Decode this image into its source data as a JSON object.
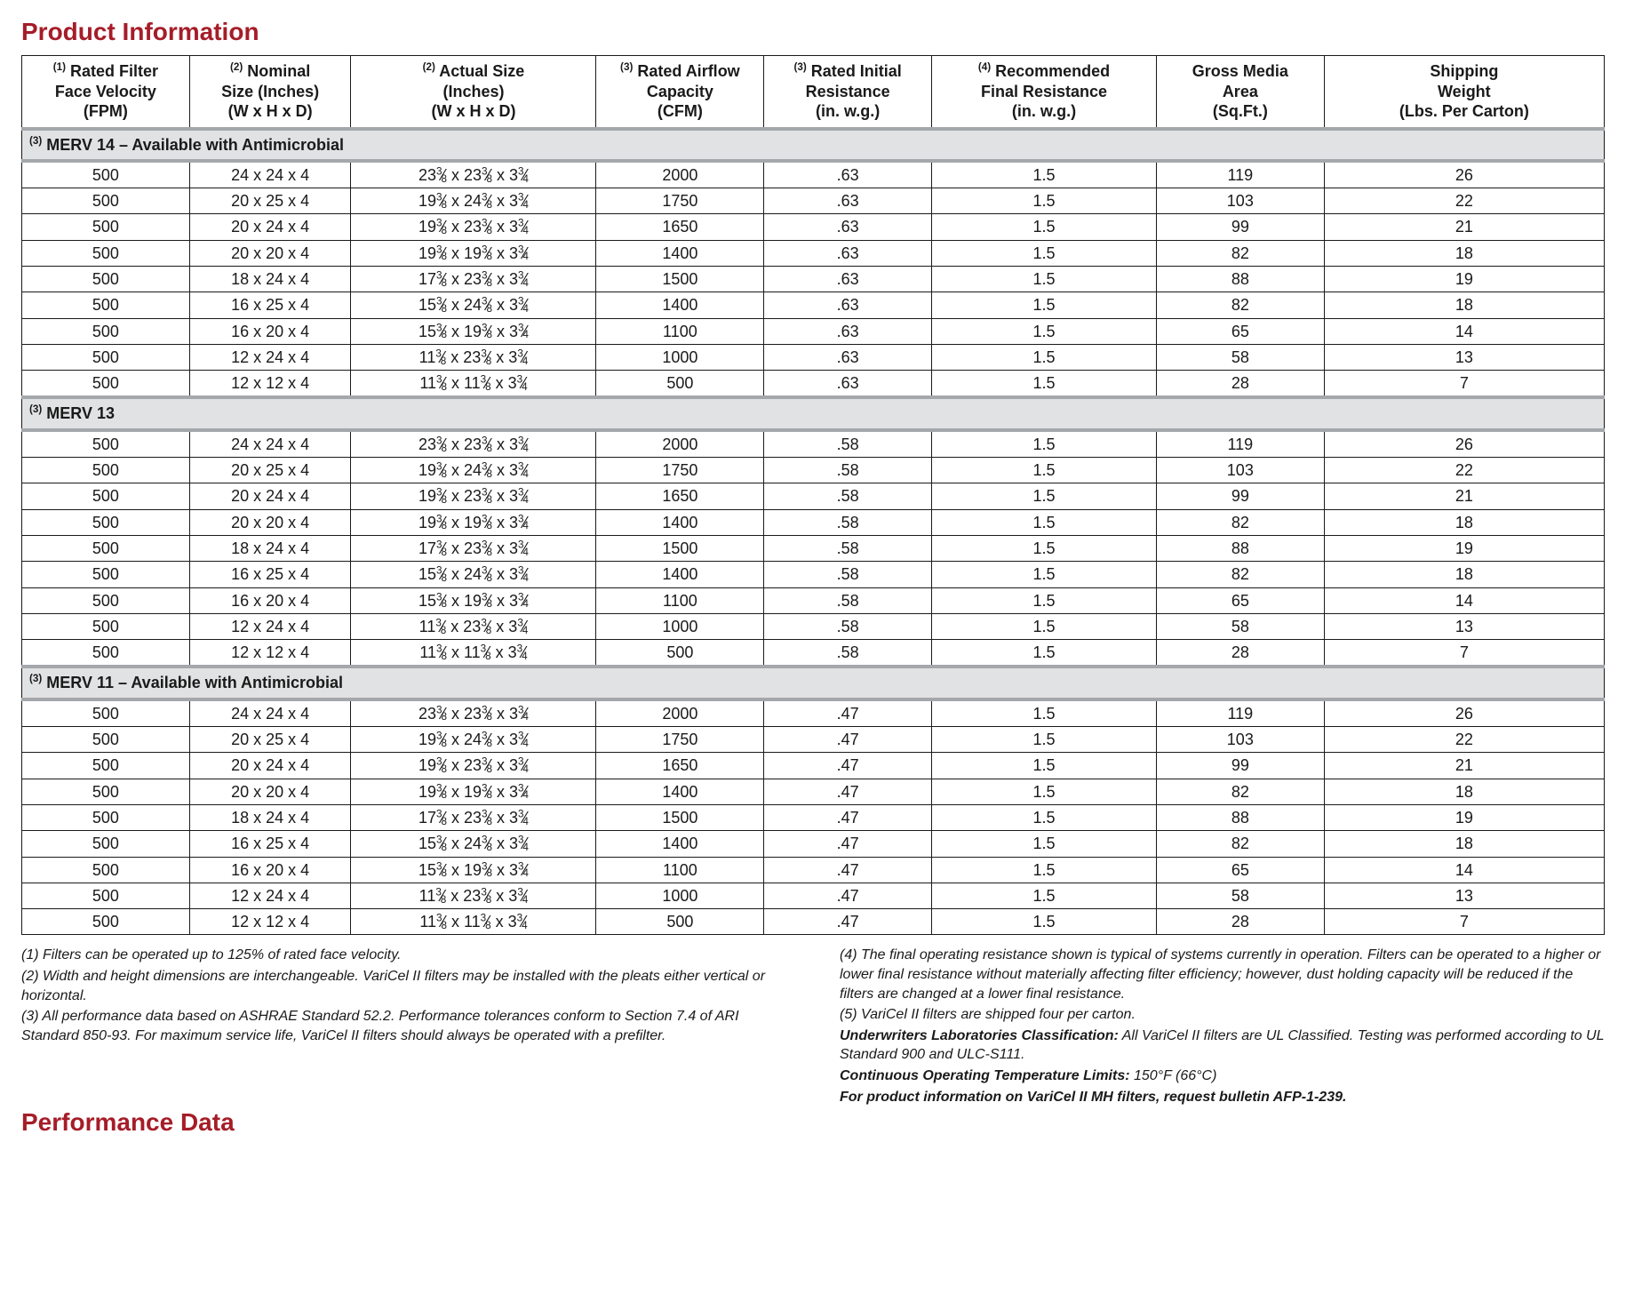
{
  "titles": {
    "product_info": "Product Information",
    "performance_data": "Performance Data"
  },
  "columns": [
    {
      "sup": "(1)",
      "l1": "Rated Filter",
      "l2": "Face Velocity",
      "l3": "(FPM)"
    },
    {
      "sup": "(2)",
      "l1": "Nominal",
      "l2": "Size (Inches)",
      "l3": "(W x H x D)"
    },
    {
      "sup": "(2)",
      "l1": "Actual Size",
      "l2": "(Inches)",
      "l3": "(W x H x D)"
    },
    {
      "sup": "(3)",
      "l1": "Rated Airflow",
      "l2": "Capacity",
      "l3": "(CFM)"
    },
    {
      "sup": "(3)",
      "l1": "Rated Initial",
      "l2": "Resistance",
      "l3": "(in. w.g.)"
    },
    {
      "sup": "(4)",
      "l1": "Recommended",
      "l2": "Final Resistance",
      "l3": "(in. w.g.)"
    },
    {
      "sup": "",
      "l1": "Gross Media",
      "l2": "Area",
      "l3": "(Sq.Ft.)"
    },
    {
      "sup": "",
      "l1": "Shipping",
      "l2": "Weight",
      "l3": "(Lbs. Per Carton)"
    }
  ],
  "sections": [
    {
      "sup": "(3)",
      "label": "MERV 14 – Available with Antimicrobial",
      "res": ".63",
      "rows": [
        {
          "nom": "24 x 24 x 4",
          "a1": "23",
          "a2": "23",
          "cfm": "2000",
          "area": "119",
          "wt": "26"
        },
        {
          "nom": "20 x 25 x 4",
          "a1": "19",
          "a2": "24",
          "cfm": "1750",
          "area": "103",
          "wt": "22"
        },
        {
          "nom": "20 x 24 x 4",
          "a1": "19",
          "a2": "23",
          "cfm": "1650",
          "area": "99",
          "wt": "21"
        },
        {
          "nom": "20 x 20 x 4",
          "a1": "19",
          "a2": "19",
          "cfm": "1400",
          "area": "82",
          "wt": "18"
        },
        {
          "nom": "18 x 24 x 4",
          "a1": "17",
          "a2": "23",
          "cfm": "1500",
          "area": "88",
          "wt": "19"
        },
        {
          "nom": "16 x 25 x 4",
          "a1": "15",
          "a2": "24",
          "cfm": "1400",
          "area": "82",
          "wt": "18"
        },
        {
          "nom": "16 x 20 x 4",
          "a1": "15",
          "a2": "19",
          "cfm": "1100",
          "area": "65",
          "wt": "14"
        },
        {
          "nom": "12 x 24 x 4",
          "a1": "11",
          "a2": "23",
          "cfm": "1000",
          "area": "58",
          "wt": "13"
        },
        {
          "nom": "12 x 12 x 4",
          "a1": "11",
          "a2": "11",
          "cfm": "500",
          "area": "28",
          "wt": "7"
        }
      ]
    },
    {
      "sup": "(3)",
      "label": "MERV 13",
      "res": ".58",
      "rows": [
        {
          "nom": "24 x 24 x 4",
          "a1": "23",
          "a2": "23",
          "cfm": "2000",
          "area": "119",
          "wt": "26"
        },
        {
          "nom": "20 x 25 x 4",
          "a1": "19",
          "a2": "24",
          "cfm": "1750",
          "area": "103",
          "wt": "22"
        },
        {
          "nom": "20 x 24 x 4",
          "a1": "19",
          "a2": "23",
          "cfm": "1650",
          "area": "99",
          "wt": "21"
        },
        {
          "nom": "20 x 20 x 4",
          "a1": "19",
          "a2": "19",
          "cfm": "1400",
          "area": "82",
          "wt": "18"
        },
        {
          "nom": "18 x 24 x 4",
          "a1": "17",
          "a2": "23",
          "cfm": "1500",
          "area": "88",
          "wt": "19"
        },
        {
          "nom": "16 x 25 x 4",
          "a1": "15",
          "a2": "24",
          "cfm": "1400",
          "area": "82",
          "wt": "18"
        },
        {
          "nom": "16 x 20 x 4",
          "a1": "15",
          "a2": "19",
          "cfm": "1100",
          "area": "65",
          "wt": "14"
        },
        {
          "nom": "12 x 24 x 4",
          "a1": "11",
          "a2": "23",
          "cfm": "1000",
          "area": "58",
          "wt": "13"
        },
        {
          "nom": "12 x 12 x 4",
          "a1": "11",
          "a2": "11",
          "cfm": "500",
          "area": "28",
          "wt": "7"
        }
      ]
    },
    {
      "sup": "(3)",
      "label": "MERV 11 – Available with Antimicrobial",
      "res": ".47",
      "rows": [
        {
          "nom": "24 x 24 x 4",
          "a1": "23",
          "a2": "23",
          "cfm": "2000",
          "area": "119",
          "wt": "26"
        },
        {
          "nom": "20 x 25 x 4",
          "a1": "19",
          "a2": "24",
          "cfm": "1750",
          "area": "103",
          "wt": "22"
        },
        {
          "nom": "20 x 24 x 4",
          "a1": "19",
          "a2": "23",
          "cfm": "1650",
          "area": "99",
          "wt": "21"
        },
        {
          "nom": "20 x 20 x 4",
          "a1": "19",
          "a2": "19",
          "cfm": "1400",
          "area": "82",
          "wt": "18"
        },
        {
          "nom": "18 x 24 x 4",
          "a1": "17",
          "a2": "23",
          "cfm": "1500",
          "area": "88",
          "wt": "19"
        },
        {
          "nom": "16 x 25 x 4",
          "a1": "15",
          "a2": "24",
          "cfm": "1400",
          "area": "82",
          "wt": "18"
        },
        {
          "nom": "16 x 20 x 4",
          "a1": "15",
          "a2": "19",
          "cfm": "1100",
          "area": "65",
          "wt": "14"
        },
        {
          "nom": "12 x 24 x 4",
          "a1": "11",
          "a2": "23",
          "cfm": "1000",
          "area": "58",
          "wt": "13"
        },
        {
          "nom": "12 x 12 x 4",
          "a1": "11",
          "a2": "11",
          "cfm": "500",
          "area": "28",
          "wt": "7"
        }
      ]
    }
  ],
  "constants": {
    "fpm": "500",
    "final": "1.5"
  },
  "footnotes_left": [
    "(1) Filters can be operated up to 125% of rated face velocity.",
    "(2) Width and height dimensions are interchangeable. VariCel II filters may be installed with the pleats either vertical or horizontal.",
    "(3) All performance data based on ASHRAE Standard 52.2. Performance tolerances conform to Section 7.4 of ARI Standard 850-93. For maximum service life, VariCel II filters should always be operated with a prefilter."
  ],
  "footnotes_right": [
    "(4) The final operating resistance shown is typical of systems currently in operation. Filters can be operated to a higher or lower final resistance without materially affecting filter efficiency; however, dust holding capacity will be reduced if the filters are changed at a lower final resistance.",
    "(5) VariCel II filters are shipped four per carton.",
    "<b>Underwriters Laboratories Classification:</b> All VariCel II filters are UL Classified. Testing was performed according to UL Standard 900 and ULC-S111.",
    "<b>Continuous Operating Temperature Limits:</b> 150°F (66°C)",
    "<b>For product information on VariCel II MH filters, request bulletin AFP-1-239.</b>"
  ]
}
